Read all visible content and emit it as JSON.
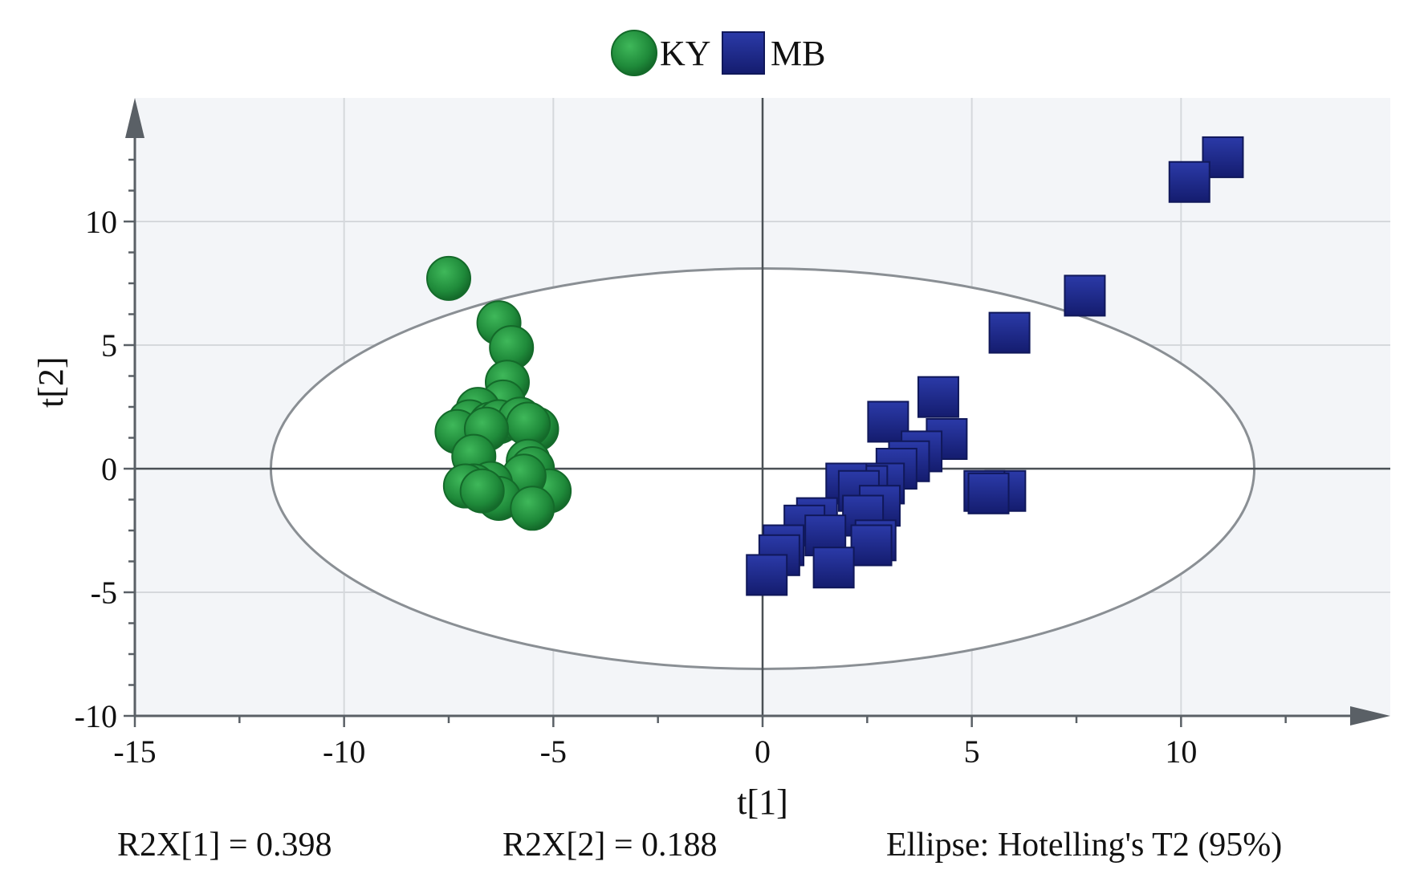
{
  "chart_data": {
    "type": "scatter",
    "xlabel": "t[1]",
    "ylabel": "t[2]",
    "xlim": [
      -15,
      15
    ],
    "ylim": [
      -10,
      15
    ],
    "x_ticks": [
      -15,
      -10,
      -5,
      0,
      5,
      10
    ],
    "y_ticks": [
      -10,
      -5,
      0,
      5,
      10
    ],
    "grid": true,
    "legend_position": "top-center",
    "ellipse": {
      "label": "Ellipse: Hotelling's T2 (95%)",
      "rx": 11.75,
      "ry": 8.1
    },
    "footer": {
      "r2x1": "R2X[1] = 0.398",
      "r2x2": "R2X[2] = 0.188",
      "ellipse_note": "Ellipse: Hotelling's T2 (95%)"
    },
    "series": [
      {
        "name": "KY",
        "marker": "circle",
        "color": "#1f8a3a",
        "points": [
          [
            -7.5,
            7.7
          ],
          [
            -6.3,
            5.9
          ],
          [
            -6.0,
            4.9
          ],
          [
            -6.1,
            3.5
          ],
          [
            -6.2,
            2.7
          ],
          [
            -6.8,
            2.4
          ],
          [
            -7.0,
            1.9
          ],
          [
            -7.3,
            1.5
          ],
          [
            -6.5,
            1.8
          ],
          [
            -6.3,
            1.9
          ],
          [
            -5.8,
            2.0
          ],
          [
            -5.4,
            1.6
          ],
          [
            -5.6,
            1.8
          ],
          [
            -6.6,
            1.6
          ],
          [
            -6.9,
            0.5
          ],
          [
            -5.6,
            0.3
          ],
          [
            -5.5,
            0.0
          ],
          [
            -5.1,
            -0.9
          ],
          [
            -5.7,
            -0.3
          ],
          [
            -6.5,
            -0.6
          ],
          [
            -6.9,
            -0.7
          ],
          [
            -7.1,
            -0.7
          ],
          [
            -6.3,
            -1.2
          ],
          [
            -5.5,
            -1.6
          ],
          [
            -6.7,
            -0.9
          ]
        ]
      },
      {
        "name": "MB",
        "marker": "square",
        "color": "#1f2a8a",
        "points": [
          [
            11.0,
            12.6
          ],
          [
            10.2,
            11.6
          ],
          [
            7.7,
            7.0
          ],
          [
            5.9,
            5.5
          ],
          [
            4.2,
            2.9
          ],
          [
            3.0,
            1.9
          ],
          [
            4.4,
            1.2
          ],
          [
            3.8,
            0.7
          ],
          [
            3.5,
            0.3
          ],
          [
            3.2,
            0.0
          ],
          [
            5.8,
            -0.9
          ],
          [
            5.3,
            -0.9
          ],
          [
            5.4,
            -1.0
          ],
          [
            2.9,
            -0.6
          ],
          [
            2.5,
            -0.7
          ],
          [
            2.0,
            -0.6
          ],
          [
            2.3,
            -0.9
          ],
          [
            2.8,
            -1.5
          ],
          [
            2.4,
            -1.9
          ],
          [
            1.3,
            -2.0
          ],
          [
            1.0,
            -2.3
          ],
          [
            1.5,
            -2.7
          ],
          [
            2.7,
            -2.9
          ],
          [
            2.6,
            -3.1
          ],
          [
            0.5,
            -3.1
          ],
          [
            0.4,
            -3.5
          ],
          [
            1.7,
            -4.0
          ],
          [
            0.1,
            -4.3
          ]
        ]
      }
    ]
  }
}
